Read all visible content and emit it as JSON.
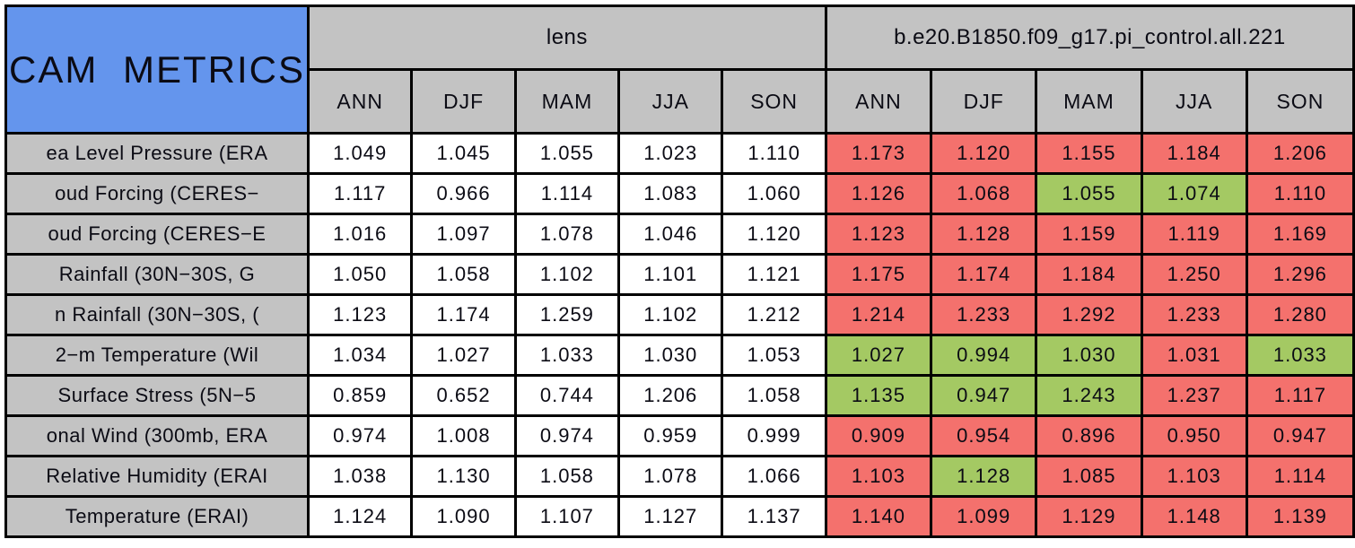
{
  "chart_data": {
    "type": "table",
    "title": "CAM METRICS",
    "column_groups": [
      {
        "label": "lens"
      },
      {
        "label": "b.e20.B1850.f09_g17.pi_control.all.221"
      }
    ],
    "season_columns": [
      "ANN",
      "DJF",
      "MAM",
      "JJA",
      "SON"
    ],
    "rows": [
      {
        "label": "ea Level Pressure (ERA",
        "lens_values": [
          "1.049",
          "1.045",
          "1.055",
          "1.023",
          "1.110"
        ],
        "control_values": [
          "1.173",
          "1.120",
          "1.155",
          "1.184",
          "1.206"
        ],
        "control_cell_colors": [
          "red",
          "red",
          "red",
          "red",
          "red"
        ]
      },
      {
        "label": "oud Forcing (CERES−",
        "lens_values": [
          "1.117",
          "0.966",
          "1.114",
          "1.083",
          "1.060"
        ],
        "control_values": [
          "1.126",
          "1.068",
          "1.055",
          "1.074",
          "1.110"
        ],
        "control_cell_colors": [
          "red",
          "red",
          "green",
          "green",
          "red"
        ]
      },
      {
        "label": "oud Forcing (CERES−E",
        "lens_values": [
          "1.016",
          "1.097",
          "1.078",
          "1.046",
          "1.120"
        ],
        "control_values": [
          "1.123",
          "1.128",
          "1.159",
          "1.119",
          "1.169"
        ],
        "control_cell_colors": [
          "red",
          "red",
          "red",
          "red",
          "red"
        ]
      },
      {
        "label": "Rainfall (30N−30S, G",
        "lens_values": [
          "1.050",
          "1.058",
          "1.102",
          "1.101",
          "1.121"
        ],
        "control_values": [
          "1.175",
          "1.174",
          "1.184",
          "1.250",
          "1.296"
        ],
        "control_cell_colors": [
          "red",
          "red",
          "red",
          "red",
          "red"
        ]
      },
      {
        "label": "n Rainfall (30N−30S, (",
        "lens_values": [
          "1.123",
          "1.174",
          "1.259",
          "1.102",
          "1.212"
        ],
        "control_values": [
          "1.214",
          "1.233",
          "1.292",
          "1.233",
          "1.280"
        ],
        "control_cell_colors": [
          "red",
          "red",
          "red",
          "red",
          "red"
        ]
      },
      {
        "label": "2−m Temperature (Wil",
        "lens_values": [
          "1.034",
          "1.027",
          "1.033",
          "1.030",
          "1.053"
        ],
        "control_values": [
          "1.027",
          "0.994",
          "1.030",
          "1.031",
          "1.033"
        ],
        "control_cell_colors": [
          "green",
          "green",
          "green",
          "red",
          "green"
        ]
      },
      {
        "label": "Surface Stress (5N−5",
        "lens_values": [
          "0.859",
          "0.652",
          "0.744",
          "1.206",
          "1.058"
        ],
        "control_values": [
          "1.135",
          "0.947",
          "1.243",
          "1.237",
          "1.117"
        ],
        "control_cell_colors": [
          "green",
          "green",
          "green",
          "red",
          "red"
        ]
      },
      {
        "label": "onal Wind (300mb, ERA",
        "lens_values": [
          "0.974",
          "1.008",
          "0.974",
          "0.959",
          "0.999"
        ],
        "control_values": [
          "0.909",
          "0.954",
          "0.896",
          "0.950",
          "0.947"
        ],
        "control_cell_colors": [
          "red",
          "red",
          "red",
          "red",
          "red"
        ]
      },
      {
        "label": "Relative Humidity (ERAI",
        "lens_values": [
          "1.038",
          "1.130",
          "1.058",
          "1.078",
          "1.066"
        ],
        "control_values": [
          "1.103",
          "1.128",
          "1.085",
          "1.103",
          "1.114"
        ],
        "control_cell_colors": [
          "red",
          "green",
          "red",
          "red",
          "red"
        ]
      },
      {
        "label": "Temperature (ERAI)",
        "lens_values": [
          "1.124",
          "1.090",
          "1.107",
          "1.127",
          "1.137"
        ],
        "control_values": [
          "1.140",
          "1.099",
          "1.129",
          "1.148",
          "1.139"
        ],
        "control_cell_colors": [
          "red",
          "red",
          "red",
          "red",
          "red"
        ]
      }
    ],
    "layout": {
      "legend": "none",
      "grid": "full black cell borders",
      "lens_cell_background": "white"
    }
  },
  "colors": {
    "red": "#F4716D",
    "green": "#A4C963",
    "header_blue": "#6495ED",
    "header_gray": "#C3C3C3",
    "border": "#000000",
    "lens_cell_bg": "#FFFFFF"
  }
}
